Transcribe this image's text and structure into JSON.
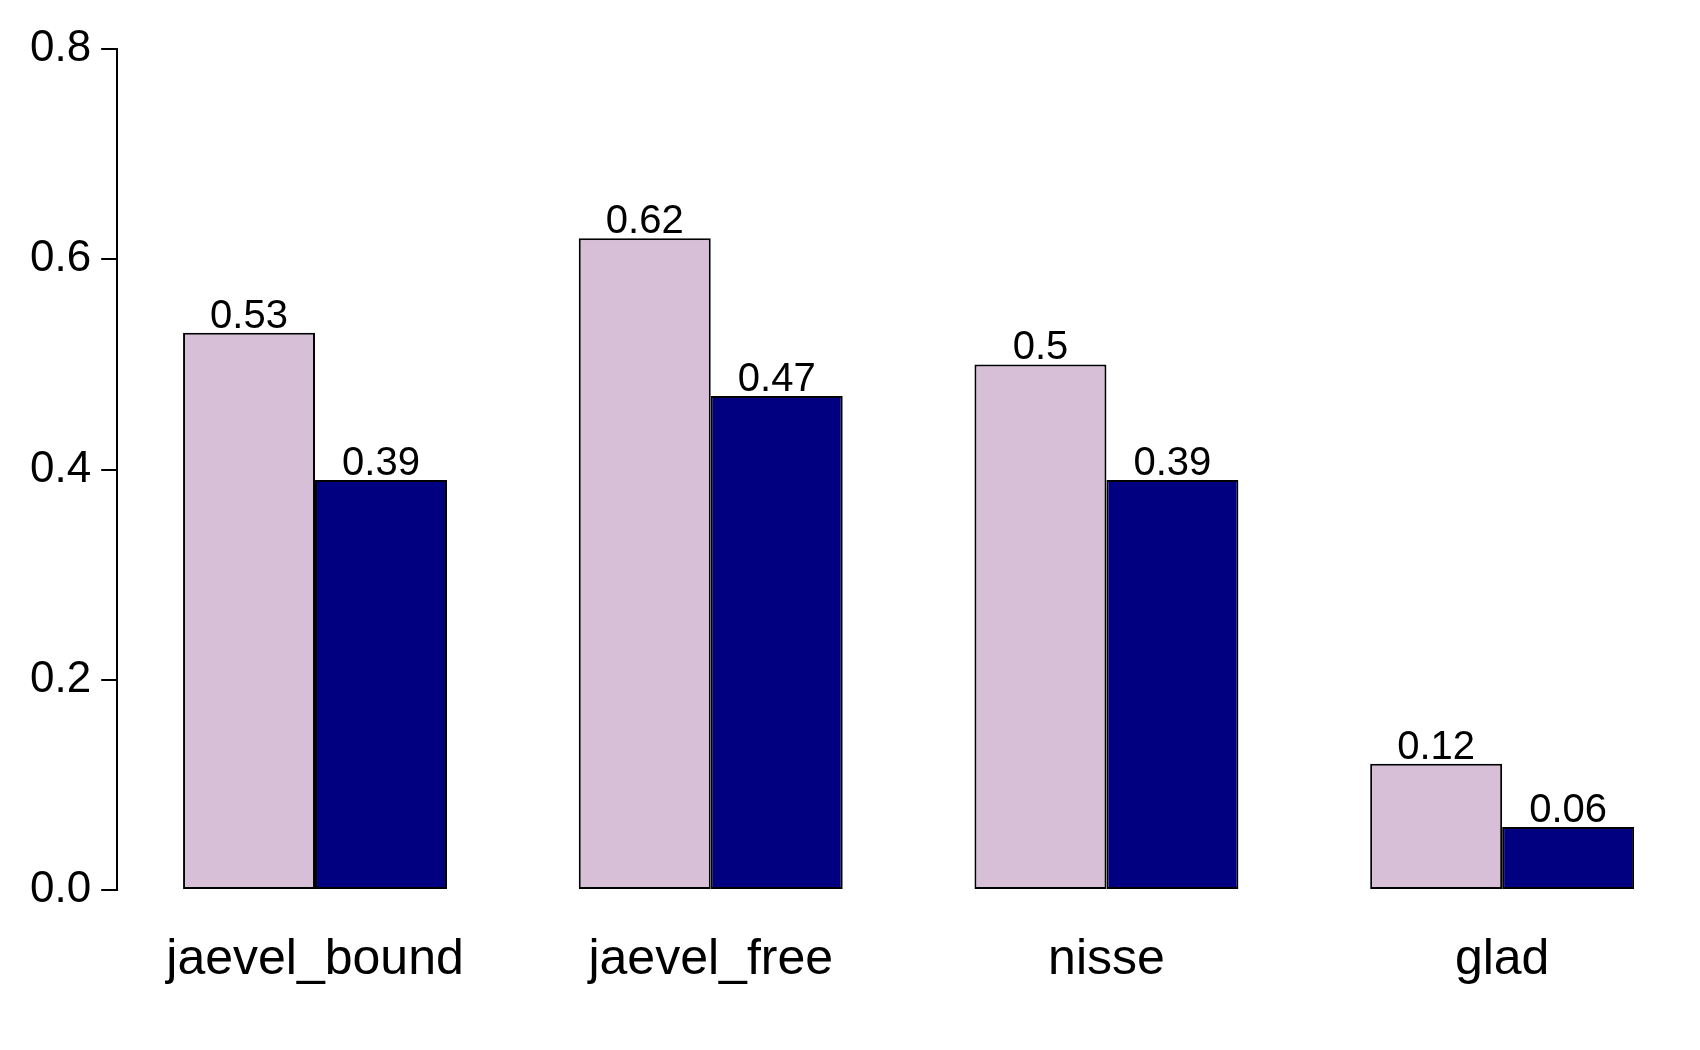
{
  "chart_data": {
    "type": "bar",
    "categories": [
      "jaevel_bound",
      "jaevel_free",
      "nisse",
      "glad"
    ],
    "series": [
      {
        "color": "#d8bfd8",
        "values": [
          0.53,
          0.62,
          0.5,
          0.12
        ]
      },
      {
        "color": "#000080",
        "values": [
          0.39,
          0.47,
          0.39,
          0.06
        ]
      }
    ],
    "ylim": [
      0,
      0.8
    ],
    "yticks": [
      {
        "value": 0,
        "label": "0.0"
      },
      {
        "value": 0.2,
        "label": "0.2"
      },
      {
        "value": 0.4,
        "label": "0.4"
      },
      {
        "value": 0.6,
        "label": "0.6"
      },
      {
        "value": 0.8,
        "label": "0.8"
      }
    ],
    "data_labels": true,
    "grid": false,
    "legend": false
  }
}
